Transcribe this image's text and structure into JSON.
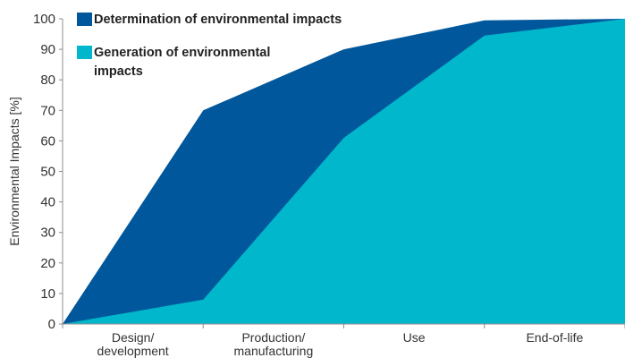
{
  "chart_data": {
    "type": "area",
    "categories": [
      "Design/\ndevelopment",
      "Production/\nmanufacturing",
      "Use",
      "End-of-life"
    ],
    "ylabel": "Environmental Impacts [%]",
    "xlabel": "",
    "ylim": [
      0,
      100
    ],
    "yticks": [
      0,
      10,
      20,
      30,
      40,
      50,
      60,
      70,
      80,
      90,
      100
    ],
    "legend_position": "top-left",
    "series": [
      {
        "name": "Determination of environmental impacts",
        "color": "#00579b",
        "points": [
          [
            0,
            0
          ],
          [
            1,
            70
          ],
          [
            2,
            90
          ],
          [
            3,
            99.5
          ],
          [
            4,
            100
          ]
        ]
      },
      {
        "name": "Generation of environmental impacts",
        "color": "#00b7cc",
        "points": [
          [
            0,
            0
          ],
          [
            1,
            8
          ],
          [
            2,
            61
          ],
          [
            3,
            94.5
          ],
          [
            4,
            100
          ]
        ]
      }
    ]
  }
}
